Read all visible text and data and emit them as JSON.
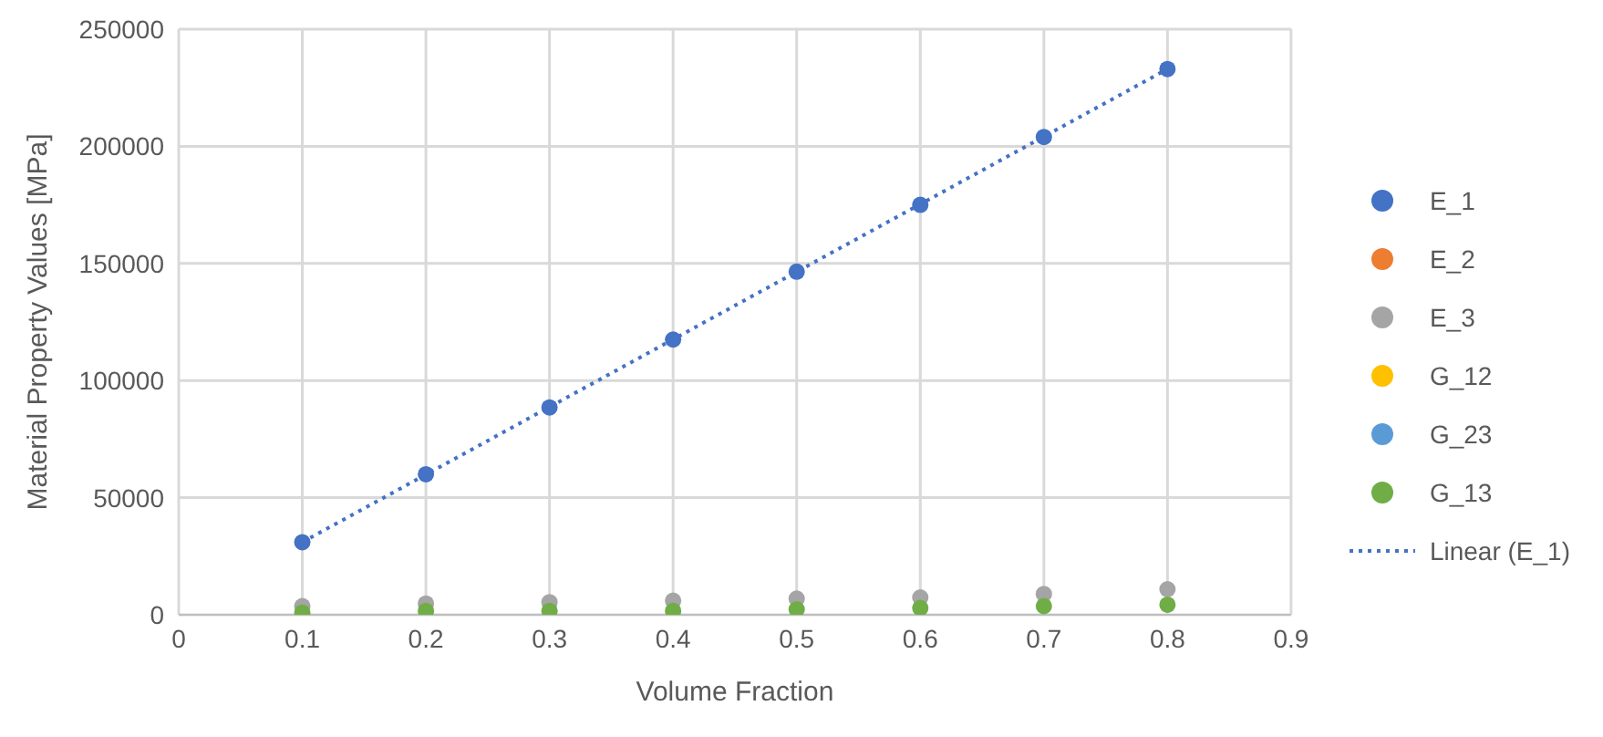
{
  "chart_data": {
    "type": "scatter",
    "xlabel": "Volume Fraction",
    "ylabel": "Material Property Values [MPa]",
    "x": [
      0.1,
      0.2,
      0.3,
      0.4,
      0.5,
      0.6,
      0.7,
      0.8
    ],
    "series": [
      {
        "name": "E_1",
        "color": "#4472c4",
        "values": [
          31000,
          60000,
          88500,
          117500,
          146500,
          175000,
          204000,
          233000
        ]
      },
      {
        "name": "E_2",
        "color": "#ed7d31",
        "values": [
          null,
          null,
          null,
          null,
          null,
          null,
          null,
          null
        ]
      },
      {
        "name": "E_3",
        "color": "#a5a5a5",
        "values": [
          3700,
          4800,
          5400,
          6000,
          6900,
          7400,
          8900,
          10900
        ]
      },
      {
        "name": "G_12",
        "color": "#ffc000",
        "values": [
          null,
          null,
          null,
          null,
          null,
          null,
          null,
          null
        ]
      },
      {
        "name": "G_23",
        "color": "#5b9bd5",
        "values": [
          null,
          null,
          null,
          null,
          null,
          null,
          null,
          null
        ]
      },
      {
        "name": "G_13",
        "color": "#70ad47",
        "values": [
          900,
          1700,
          1700,
          1700,
          2300,
          2900,
          3700,
          4300
        ]
      },
      {
        "name": "Linear (E_1)",
        "type": "line",
        "color": "#4472c4",
        "x": [
          0.1,
          0.8
        ],
        "values": [
          31000,
          233000
        ],
        "line_style": "dotted",
        "marker": "none"
      }
    ],
    "xlim": [
      0,
      0.9
    ],
    "xticks": [
      0,
      0.1,
      0.2,
      0.3,
      0.4,
      0.5,
      0.6,
      0.7,
      0.8,
      0.9
    ],
    "ylim": [
      0,
      250000
    ],
    "yticks": [
      0,
      50000,
      100000,
      150000,
      200000,
      250000
    ],
    "grid": true,
    "legend": "right",
    "marker": "circle"
  }
}
